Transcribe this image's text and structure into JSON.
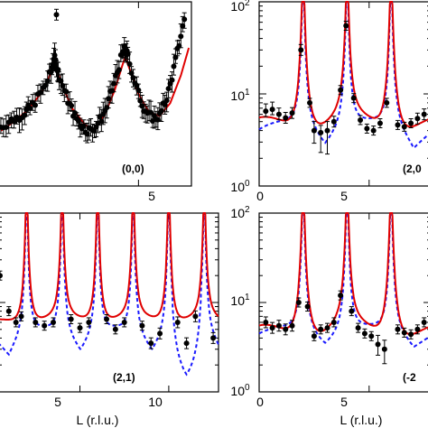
{
  "chart_data": [
    {
      "panel": "top-left",
      "type": "scatter",
      "label": "(0,0)",
      "xlim": [
        -0.3,
        7.0
      ],
      "xticks": [
        5
      ],
      "yscale": "linear",
      "xlabel": "",
      "ylabel": "",
      "series": [
        {
          "kind": "data-errorbars",
          "color": "#000000",
          "points": [
            [
              -0.2,
              0.32
            ],
            [
              0.1,
              0.35
            ],
            [
              0.4,
              0.37
            ],
            [
              0.7,
              0.4
            ],
            [
              0.9,
              0.42
            ],
            [
              1.2,
              0.48
            ],
            [
              1.5,
              0.55
            ],
            [
              1.7,
              0.62
            ],
            [
              1.8,
              0.7
            ],
            [
              1.9,
              0.66
            ],
            [
              2.0,
              0.6
            ],
            [
              2.2,
              0.52
            ],
            [
              2.4,
              0.44
            ],
            [
              2.6,
              0.38
            ],
            [
              2.8,
              0.34
            ],
            [
              3.0,
              0.31
            ],
            [
              3.2,
              0.3
            ],
            [
              3.4,
              0.33
            ],
            [
              3.6,
              0.37
            ],
            [
              3.8,
              0.43
            ],
            [
              4.0,
              0.52
            ],
            [
              4.2,
              0.62
            ],
            [
              4.4,
              0.72
            ],
            [
              4.5,
              0.74
            ],
            [
              4.6,
              0.7
            ],
            [
              4.8,
              0.6
            ],
            [
              5.0,
              0.5
            ],
            [
              5.2,
              0.43
            ],
            [
              5.4,
              0.38
            ],
            [
              5.6,
              0.37
            ],
            [
              5.8,
              0.38
            ],
            [
              6.0,
              0.45
            ],
            [
              6.2,
              0.55
            ],
            [
              6.4,
              0.68
            ],
            [
              6.6,
              0.82
            ],
            [
              6.8,
              0.95
            ]
          ],
          "outlier": [
            1.9,
            0.93
          ]
        },
        {
          "kind": "fit",
          "color": "#e00000",
          "points": [
            [
              -0.2,
              0.3
            ],
            [
              0.3,
              0.35
            ],
            [
              0.8,
              0.41
            ],
            [
              1.3,
              0.5
            ],
            [
              1.6,
              0.58
            ],
            [
              1.8,
              0.68
            ],
            [
              1.9,
              0.64
            ],
            [
              2.1,
              0.55
            ],
            [
              2.5,
              0.42
            ],
            [
              3.0,
              0.33
            ],
            [
              3.3,
              0.31
            ],
            [
              3.7,
              0.38
            ],
            [
              4.1,
              0.52
            ],
            [
              4.4,
              0.66
            ],
            [
              4.5,
              0.7
            ],
            [
              4.7,
              0.62
            ],
            [
              5.0,
              0.5
            ],
            [
              5.4,
              0.4
            ],
            [
              5.8,
              0.38
            ],
            [
              6.2,
              0.45
            ],
            [
              6.6,
              0.6
            ],
            [
              6.9,
              0.75
            ]
          ]
        }
      ]
    },
    {
      "panel": "top-right",
      "type": "scatter",
      "label": "(2,0",
      "xlim": [
        0,
        7.8
      ],
      "xticks": [
        0,
        5
      ],
      "yscale": "log",
      "ylim": [
        1,
        100
      ],
      "ytick_labels": [
        "10⁰",
        "10¹",
        "10²"
      ],
      "series": [
        {
          "kind": "data-errorbars",
          "color": "#000000",
          "points": [
            [
              0.3,
              6.5
            ],
            [
              0.6,
              6.8
            ],
            [
              0.9,
              6.0
            ],
            [
              1.2,
              5.5
            ],
            [
              1.5,
              6.2
            ],
            [
              1.8,
              30
            ],
            [
              2.1,
              8.0
            ],
            [
              2.4,
              4.2
            ],
            [
              2.7,
              3.8
            ],
            [
              3.0,
              4.0
            ],
            [
              3.3,
              5.0
            ],
            [
              3.6,
              10
            ],
            [
              3.9,
              55
            ],
            [
              4.2,
              9.0
            ],
            [
              4.5,
              5.5
            ],
            [
              4.8,
              4.3
            ],
            [
              5.1,
              4.0
            ],
            [
              5.4,
              4.8
            ],
            [
              5.7,
              8.0
            ],
            [
              6.0,
              6.5
            ],
            [
              6.3,
              4.6
            ],
            [
              6.6,
              4.4
            ],
            [
              6.9,
              4.8
            ],
            [
              7.2,
              5.5
            ],
            [
              7.5,
              6.0
            ]
          ]
        },
        {
          "kind": "fit-red",
          "color": "#e00000"
        },
        {
          "kind": "fit-blue-dashed",
          "color": "#1a1aff"
        }
      ]
    },
    {
      "panel": "bottom-left",
      "type": "scatter",
      "label": "(2,1)",
      "xlim": [
        0.4,
        12.8
      ],
      "xticks": [
        5,
        10
      ],
      "yscale": "log",
      "xlabel": "L (r.l.u.)",
      "series": [
        {
          "kind": "data-errorbars",
          "color": "#000000"
        },
        {
          "kind": "fit-red",
          "color": "#e00000"
        },
        {
          "kind": "fit-blue-dashed",
          "color": "#1a1aff"
        }
      ]
    },
    {
      "panel": "bottom-right",
      "type": "scatter",
      "label": "(-2",
      "xlim": [
        0,
        7.8
      ],
      "xticks": [
        0,
        5
      ],
      "yscale": "log",
      "ylim": [
        1,
        100
      ],
      "ytick_labels": [
        "10⁰",
        "10¹",
        "10²"
      ],
      "xlabel": "L (r.l.u.)",
      "series": [
        {
          "kind": "data-errorbars",
          "color": "#000000"
        },
        {
          "kind": "fit-red",
          "color": "#e00000"
        },
        {
          "kind": "fit-blue-dashed",
          "color": "#1a1aff"
        }
      ]
    }
  ],
  "labels": {
    "tl_label": "(0,0)",
    "tl_xtick_5": "5",
    "tr_label": "(2,0",
    "tr_ytick_0": "10",
    "tr_ytick_0_exp": "0",
    "tr_ytick_1": "10",
    "tr_ytick_1_exp": "1",
    "tr_ytick_2": "10",
    "tr_ytick_2_exp": "2",
    "tr_xtick_0": "0",
    "tr_xtick_5": "5",
    "bl_label": "(2,1)",
    "bl_xtick_5": "5",
    "bl_xtick_10": "10",
    "bl_xlabel": "L (r.l.u.)",
    "br_label": "(-2",
    "br_ytick_0": "10",
    "br_ytick_0_exp": "0",
    "br_ytick_1": "10",
    "br_ytick_1_exp": "1",
    "br_ytick_2": "10",
    "br_ytick_2_exp": "2",
    "br_xtick_0": "0",
    "br_xtick_5": "5",
    "br_xlabel": "L (r.l.u.)"
  }
}
